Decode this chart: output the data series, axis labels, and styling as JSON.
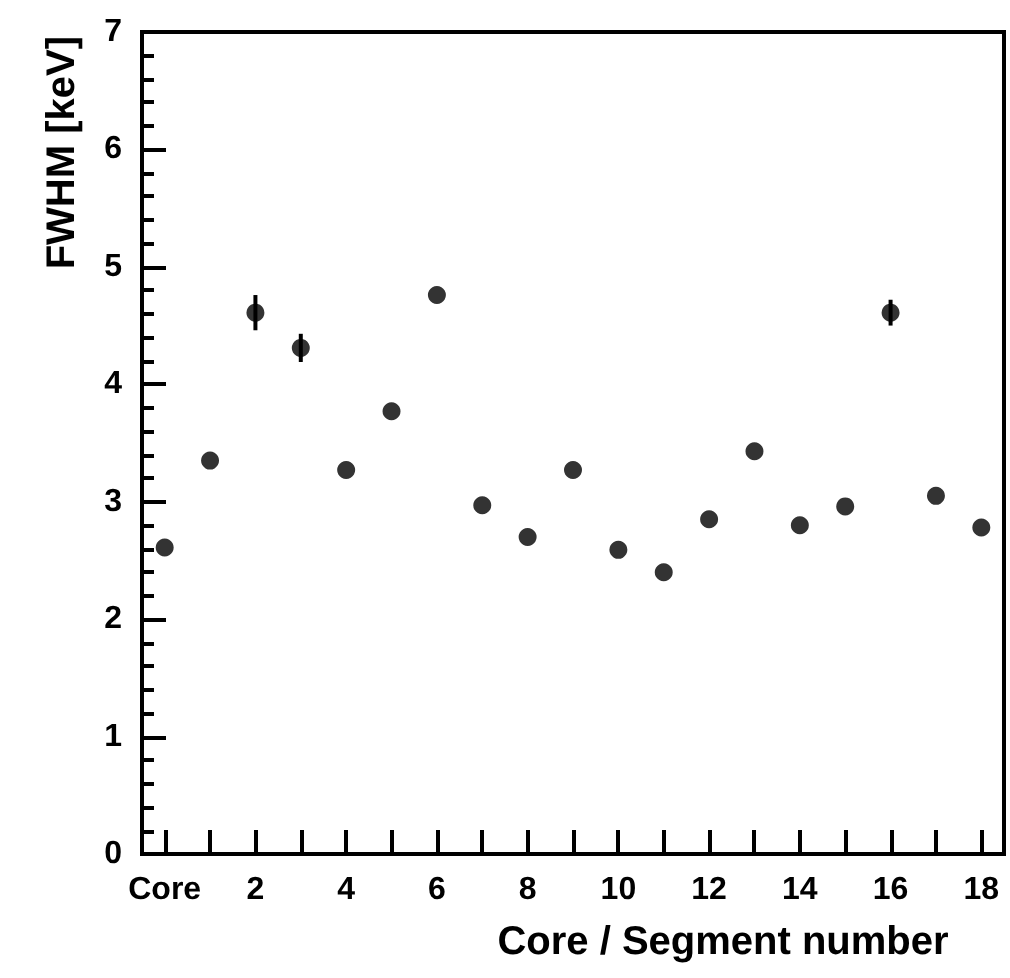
{
  "chart_data": {
    "type": "scatter",
    "xlabel": "Core / Segment number",
    "ylabel": "FWHM [keV]",
    "x": [
      0,
      1,
      2,
      3,
      4,
      5,
      6,
      7,
      8,
      9,
      10,
      11,
      12,
      13,
      14,
      15,
      16,
      17,
      18
    ],
    "series": [
      {
        "color": "#000000",
        "values": [
          2.61,
          3.35,
          4.61,
          4.31,
          3.27,
          3.77,
          4.76,
          2.97,
          2.7,
          3.27,
          2.59,
          2.4,
          2.85,
          3.43,
          2.8,
          2.96,
          4.61,
          3.05,
          2.78
        ],
        "errors": [
          null,
          null,
          0.15,
          0.12,
          null,
          null,
          null,
          null,
          null,
          null,
          null,
          null,
          null,
          null,
          null,
          null,
          0.11,
          null,
          null
        ]
      }
    ],
    "marker": "circle",
    "xlim": [
      -0.5,
      18.5
    ],
    "xticks": [
      {
        "value": 0,
        "label": "Core"
      },
      {
        "value": 1,
        "label": null
      },
      2,
      {
        "value": 3,
        "label": null
      },
      4,
      {
        "value": 5,
        "label": null
      },
      6,
      {
        "value": 7,
        "label": null
      },
      8,
      {
        "value": 9,
        "label": null
      },
      10,
      {
        "value": 11,
        "label": null
      },
      12,
      {
        "value": 13,
        "label": null
      },
      14,
      {
        "value": 15,
        "label": null
      },
      16,
      {
        "value": 17,
        "label": null
      },
      18
    ],
    "ylim": [
      0,
      7
    ],
    "yticks": [
      0,
      1,
      2,
      3,
      4,
      5,
      6,
      7
    ],
    "grid": false
  }
}
